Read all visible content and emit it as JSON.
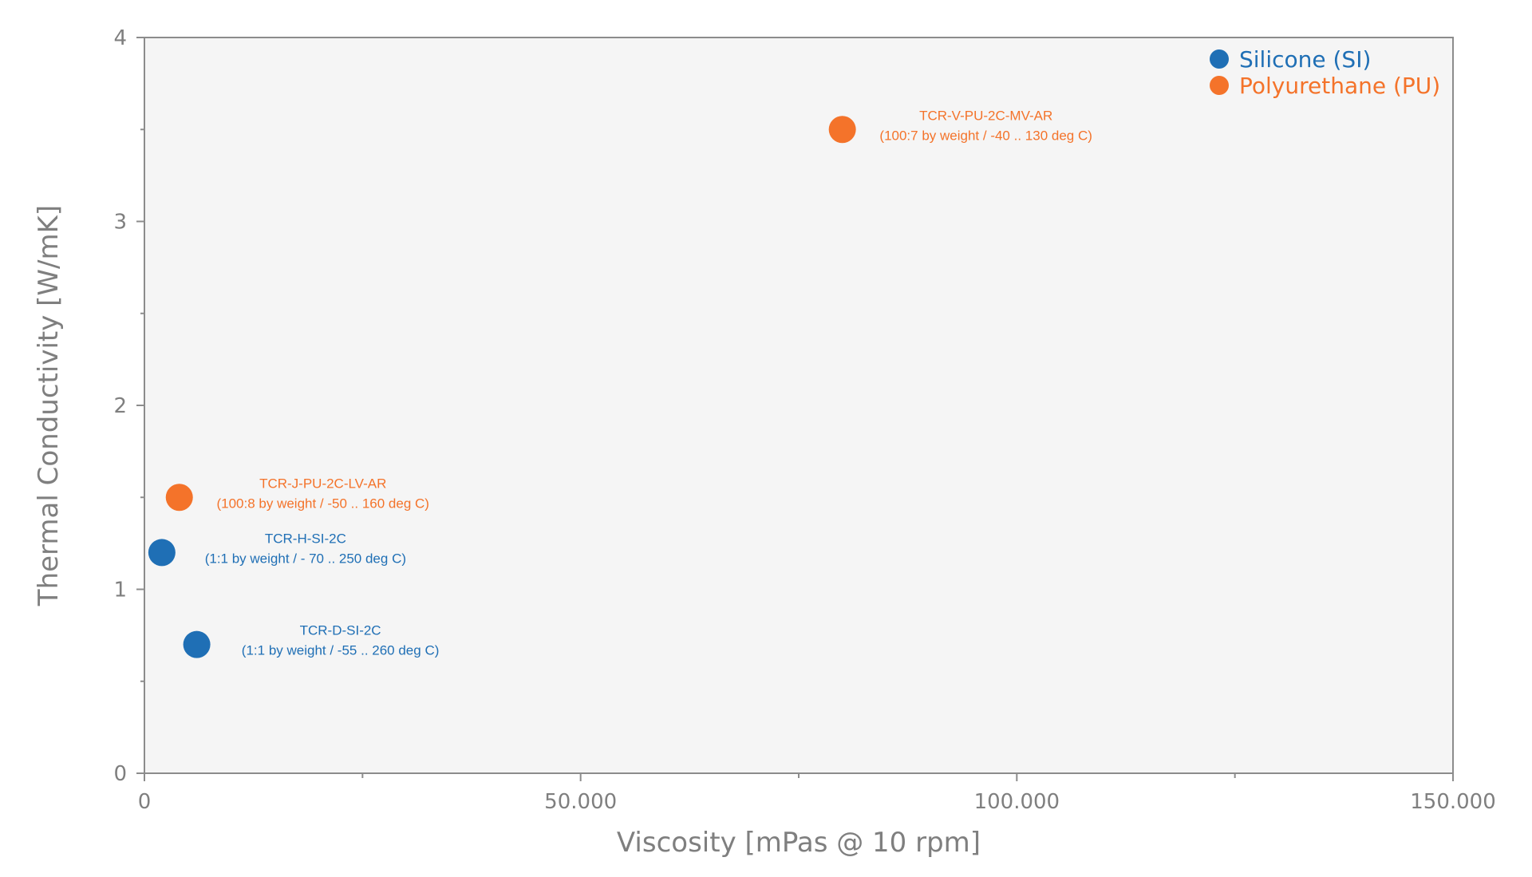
{
  "chart_data": {
    "type": "scatter",
    "xlabel": "Viscosity [mPas @ 10 rpm]",
    "ylabel": "Thermal Conductivity [W/mK]",
    "xlim": [
      0,
      150000
    ],
    "ylim": [
      0,
      4
    ],
    "x_ticks": [
      {
        "value": 0,
        "label": "0"
      },
      {
        "value": 50000,
        "label": "50.000"
      },
      {
        "value": 100000,
        "label": "100.000"
      },
      {
        "value": 150000,
        "label": "150.000"
      }
    ],
    "x_minor_ticks": [
      25000,
      75000,
      125000
    ],
    "y_ticks": [
      {
        "value": 0,
        "label": "0"
      },
      {
        "value": 1,
        "label": "1"
      },
      {
        "value": 2,
        "label": "2"
      },
      {
        "value": 3,
        "label": "3"
      },
      {
        "value": 4,
        "label": "4"
      }
    ],
    "y_minor_ticks": [
      0.5,
      1.5,
      2.5,
      3.5
    ],
    "grid": false,
    "legend_position": "top-right",
    "plot_background": "#f5f5f5",
    "series": [
      {
        "name": "Silicone (SI)",
        "color": "#1f6fb5",
        "points": [
          {
            "x": 2000,
            "y": 1.2,
            "label_line1": "TCR-H-SI-2C",
            "label_line2": "(1:1 by weight / - 70 .. 250 deg C)"
          },
          {
            "x": 6000,
            "y": 0.7,
            "label_line1": "TCR-D-SI-2C",
            "label_line2": "(1:1 by weight / -55 .. 260 deg C)"
          }
        ]
      },
      {
        "name": "Polyurethane (PU)",
        "color": "#f4732a",
        "points": [
          {
            "x": 4000,
            "y": 1.5,
            "label_line1": "TCR-J-PU-2C-LV-AR",
            "label_line2": "(100:8 by weight / -50 .. 160 deg C)"
          },
          {
            "x": 80000,
            "y": 3.5,
            "label_line1": "TCR-V-PU-2C-MV-AR",
            "label_line2": "(100:7 by weight / -40 .. 130 deg C)"
          }
        ]
      }
    ]
  }
}
